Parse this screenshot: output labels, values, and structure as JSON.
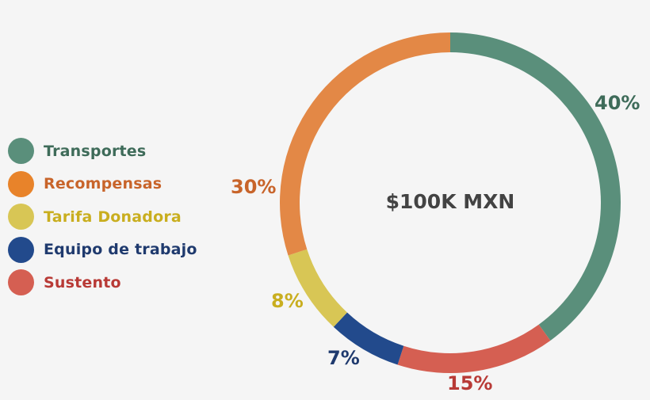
{
  "chart_data": {
    "type": "pie",
    "subtype": "donut",
    "title": "",
    "center_label": "$100K MXN",
    "start_angle": "12 o'clock, clockwise",
    "categories": [
      "Transportes",
      "Sustento",
      "Equipo de trabajo",
      "Tarifa Donadora",
      "Recompensas"
    ],
    "values": [
      40,
      15,
      7,
      8,
      30
    ],
    "labels": [
      "40%",
      "15%",
      "7%",
      "8%",
      "30%"
    ],
    "colors": [
      "#5a8f7b",
      "#d55f52",
      "#224a8c",
      "#d8c655",
      "#e38846"
    ],
    "legend_position": "left",
    "legend_order": [
      "Transportes",
      "Recompensas",
      "Tarifa Donadora",
      "Equipo de trabajo",
      "Sustento"
    ]
  },
  "legend": {
    "items": [
      {
        "label": "Transportes",
        "dot_color": "#5a8f7b",
        "text_color": "#3e6b59"
      },
      {
        "label": "Recompensas",
        "dot_color": "#e8832a",
        "text_color": "#c8642a"
      },
      {
        "label": "Tarifa Donadora",
        "dot_color": "#d8c655",
        "text_color": "#c9ae1f"
      },
      {
        "label": "Equipo de trabajo",
        "dot_color": "#224a8c",
        "text_color": "#1f3a6e"
      },
      {
        "label": "Sustento",
        "dot_color": "#d55f52",
        "text_color": "#b83a36"
      }
    ]
  },
  "center": {
    "label": "$100K MXN"
  },
  "percent_labels": {
    "transportes": {
      "text": "40%",
      "color": "#3e6b59"
    },
    "recompensas": {
      "text": "30%",
      "color": "#c8642a"
    },
    "tarifa": {
      "text": "8%",
      "color": "#c9ae1f"
    },
    "equipo": {
      "text": "7%",
      "color": "#1f3a6e"
    },
    "sustento": {
      "text": "15%",
      "color": "#b83a36"
    }
  }
}
